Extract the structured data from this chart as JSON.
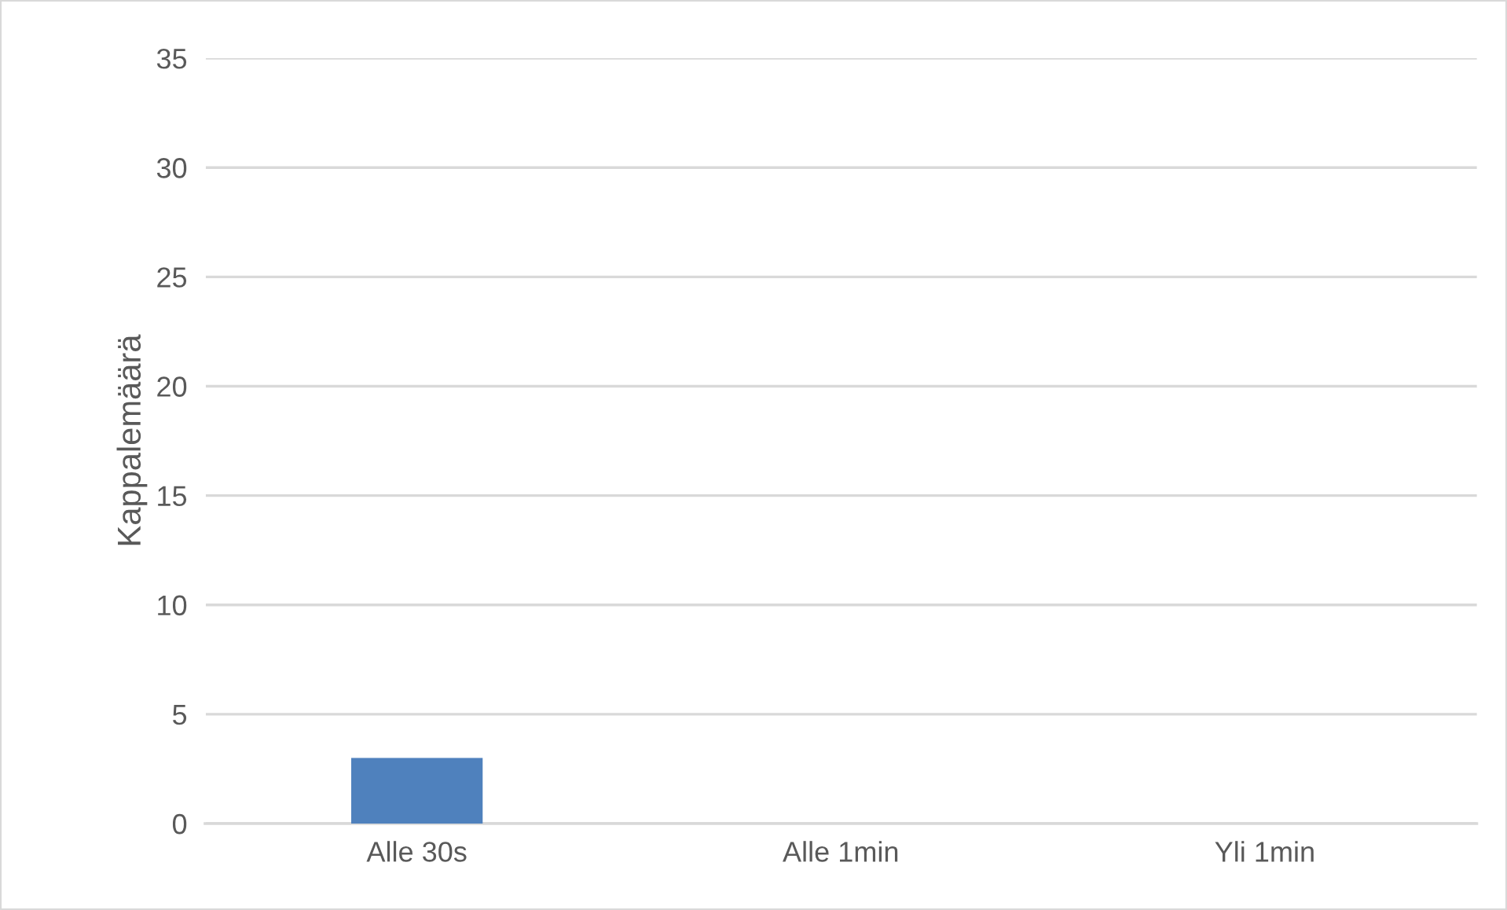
{
  "chart_data": {
    "type": "bar",
    "ylabel": "Kappalemäärä",
    "categories": [
      "Alle 30s",
      "Alle 1min",
      "Yli 1min"
    ],
    "values": [
      3,
      0,
      0
    ],
    "color": "#4f81bd",
    "ylim": [
      0,
      35
    ],
    "yticks": [
      0,
      5,
      10,
      15,
      20,
      25,
      30,
      35
    ],
    "grid": "y"
  }
}
